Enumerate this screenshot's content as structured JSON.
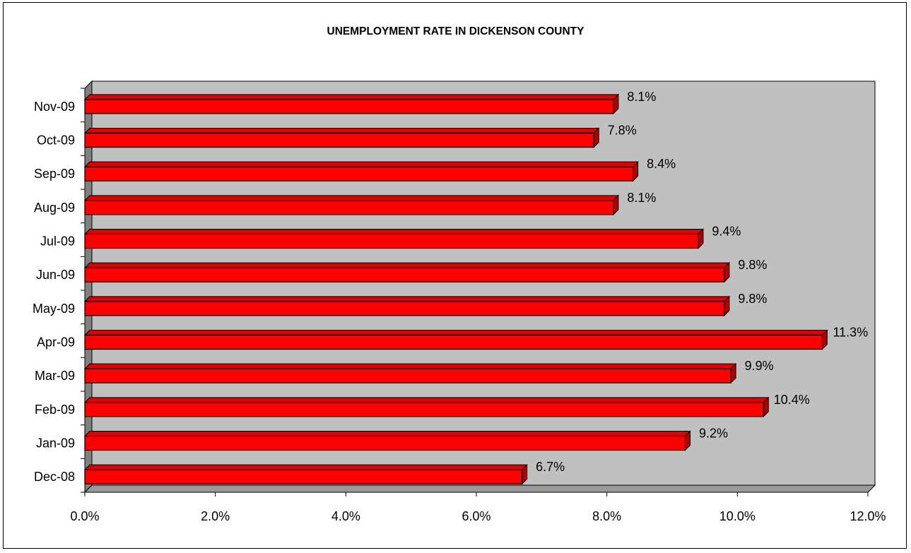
{
  "chart_data": {
    "type": "bar",
    "orientation": "horizontal",
    "title": "UNEMPLOYMENT RATE IN DICKENSON COUNTY",
    "xlabel": "",
    "ylabel": "",
    "categories": [
      "Nov-09",
      "Oct-09",
      "Sep-09",
      "Aug-09",
      "Jul-09",
      "Jun-09",
      "May-09",
      "Apr-09",
      "Mar-09",
      "Feb-09",
      "Jan-09",
      "Dec-08"
    ],
    "values": [
      8.1,
      7.8,
      8.4,
      8.1,
      9.4,
      9.8,
      9.8,
      11.3,
      9.9,
      10.4,
      9.2,
      6.7
    ],
    "value_labels": [
      "8.1%",
      "7.8%",
      "8.4%",
      "8.1%",
      "9.4%",
      "9.8%",
      "9.8%",
      "11.3%",
      "9.9%",
      "10.4%",
      "9.2%",
      "6.7%"
    ],
    "xlim": [
      0,
      12
    ],
    "x_ticks": [
      "0.0%",
      "2.0%",
      "4.0%",
      "6.0%",
      "8.0%",
      "10.0%",
      "12.0%"
    ],
    "grid": false,
    "legend": "none",
    "colors": {
      "bar": "#ff0000",
      "bar_side": "#b00000",
      "bar_top": "#e00000",
      "plot_back": "#c0c0c0",
      "plot_side": "#808080",
      "plot_floor": "#9a9a9a"
    }
  }
}
